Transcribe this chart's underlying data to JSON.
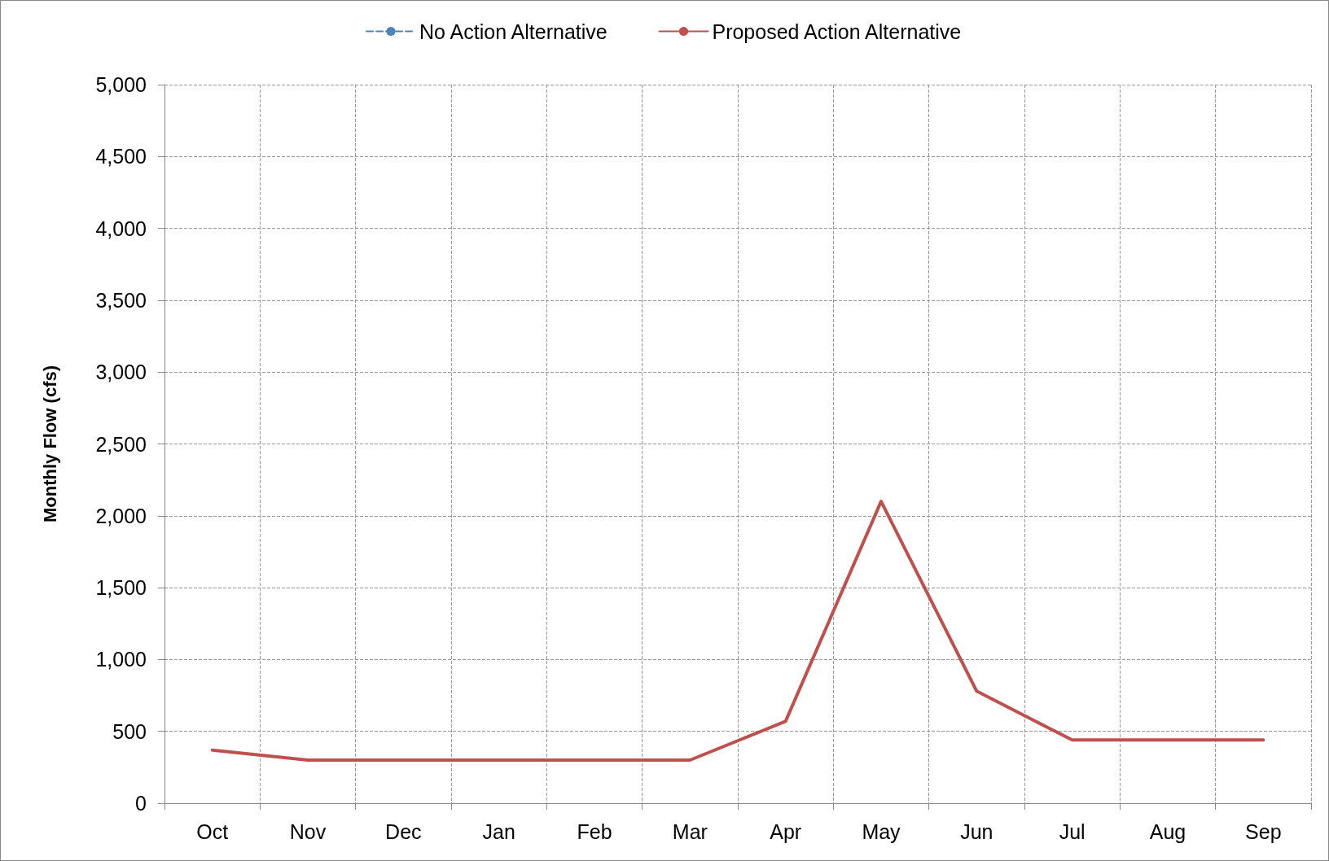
{
  "chart_data": {
    "type": "line",
    "ylabel": "Monthly Flow (cfs)",
    "categories": [
      "Oct",
      "Nov",
      "Dec",
      "Jan",
      "Feb",
      "Mar",
      "Apr",
      "May",
      "Jun",
      "Jul",
      "Aug",
      "Sep"
    ],
    "series": [
      {
        "name": "No Action Alternative",
        "color": "#4f81bd",
        "line_style": "dashed",
        "values": [
          null,
          null,
          null,
          null,
          null,
          null,
          null,
          null,
          null,
          null,
          null,
          null
        ]
      },
      {
        "name": "Proposed Action Alternative",
        "color": "#c0504d",
        "line_style": "solid",
        "values": [
          370,
          300,
          300,
          300,
          300,
          300,
          570,
          2100,
          780,
          440,
          440,
          440
        ]
      }
    ],
    "ylim": [
      0,
      5000
    ],
    "yticks": [
      0,
      500,
      {
        "value": 1000,
        "label": "1,000"
      },
      {
        "value": 1500,
        "label": "1,500"
      },
      {
        "value": 2000,
        "label": "2,000"
      },
      {
        "value": 2500,
        "label": "2,500"
      },
      {
        "value": 3000,
        "label": "3,000"
      },
      {
        "value": 3500,
        "label": "3,500"
      },
      {
        "value": 4000,
        "label": "4,000"
      },
      {
        "value": 4500,
        "label": "4,500"
      },
      {
        "value": 5000,
        "label": "5,000"
      }
    ],
    "grid": true,
    "legend": "top",
    "marker": "none"
  }
}
